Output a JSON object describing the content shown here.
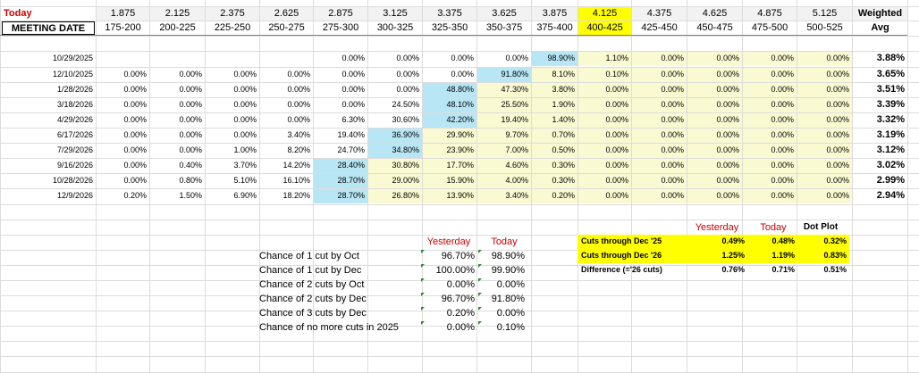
{
  "header": {
    "today_label": "Today",
    "meeting_date_label": "MEETING DATE",
    "rates": [
      "1.875",
      "2.125",
      "2.375",
      "2.625",
      "2.875",
      "3.125",
      "3.375",
      "3.625",
      "3.875",
      "4.125",
      "4.375",
      "4.625",
      "4.875",
      "5.125"
    ],
    "ranges": [
      "175-200",
      "200-225",
      "225-250",
      "250-275",
      "275-300",
      "300-325",
      "325-350",
      "350-375",
      "375-400",
      "400-425",
      "425-450",
      "450-475",
      "475-500",
      "500-525"
    ],
    "weighted_label": "Weighted",
    "avg_label": "Avg"
  },
  "rows": [
    {
      "date": "10/29/2025",
      "cells": [
        "",
        "",
        "",
        "",
        "0.00%",
        "0.00%",
        "0.00%",
        "0.00%",
        "98.90%",
        "1.10%",
        "0.00%",
        "0.00%",
        "0.00%",
        "0.00%"
      ],
      "avg": "3.88%"
    },
    {
      "date": "12/10/2025",
      "cells": [
        "0.00%",
        "0.00%",
        "0.00%",
        "0.00%",
        "0.00%",
        "0.00%",
        "0.00%",
        "91.80%",
        "8.10%",
        "0.10%",
        "0.00%",
        "0.00%",
        "0.00%",
        "0.00%"
      ],
      "avg": "3.65%"
    },
    {
      "date": "1/28/2026",
      "cells": [
        "0.00%",
        "0.00%",
        "0.00%",
        "0.00%",
        "0.00%",
        "0.00%",
        "48.80%",
        "47.30%",
        "3.80%",
        "0.00%",
        "0.00%",
        "0.00%",
        "0.00%",
        "0.00%"
      ],
      "avg": "3.51%"
    },
    {
      "date": "3/18/2026",
      "cells": [
        "0.00%",
        "0.00%",
        "0.00%",
        "0.00%",
        "0.00%",
        "24.50%",
        "48.10%",
        "25.50%",
        "1.90%",
        "0.00%",
        "0.00%",
        "0.00%",
        "0.00%",
        "0.00%"
      ],
      "avg": "3.39%"
    },
    {
      "date": "4/29/2026",
      "cells": [
        "0.00%",
        "0.00%",
        "0.00%",
        "0.00%",
        "6.30%",
        "30.60%",
        "42.20%",
        "19.40%",
        "1.40%",
        "0.00%",
        "0.00%",
        "0.00%",
        "0.00%",
        "0.00%"
      ],
      "avg": "3.32%"
    },
    {
      "date": "6/17/2026",
      "cells": [
        "0.00%",
        "0.00%",
        "0.00%",
        "3.40%",
        "19.40%",
        "36.90%",
        "29.90%",
        "9.70%",
        "0.70%",
        "0.00%",
        "0.00%",
        "0.00%",
        "0.00%",
        "0.00%"
      ],
      "avg": "3.19%"
    },
    {
      "date": "7/29/2026",
      "cells": [
        "0.00%",
        "0.00%",
        "1.00%",
        "8.20%",
        "24.70%",
        "34.80%",
        "23.90%",
        "7.00%",
        "0.50%",
        "0.00%",
        "0.00%",
        "0.00%",
        "0.00%",
        "0.00%"
      ],
      "avg": "3.12%"
    },
    {
      "date": "9/16/2026",
      "cells": [
        "0.00%",
        "0.40%",
        "3.70%",
        "14.20%",
        "28.40%",
        "30.80%",
        "17.70%",
        "4.60%",
        "0.30%",
        "0.00%",
        "0.00%",
        "0.00%",
        "0.00%",
        "0.00%"
      ],
      "avg": "3.02%"
    },
    {
      "date": "10/28/2026",
      "cells": [
        "0.00%",
        "0.80%",
        "5.10%",
        "16.10%",
        "28.70%",
        "29.00%",
        "15.90%",
        "4.00%",
        "0.30%",
        "0.00%",
        "0.00%",
        "0.00%",
        "0.00%",
        "0.00%"
      ],
      "avg": "2.99%"
    },
    {
      "date": "12/9/2026",
      "cells": [
        "0.20%",
        "1.50%",
        "6.90%",
        "18.20%",
        "28.70%",
        "26.80%",
        "13.90%",
        "3.40%",
        "0.20%",
        "0.00%",
        "0.00%",
        "0.00%",
        "0.00%",
        "0.00%"
      ],
      "avg": "2.94%"
    }
  ],
  "highlights_blue": [
    [
      0,
      8
    ],
    [
      1,
      7
    ],
    [
      2,
      6
    ],
    [
      3,
      6
    ],
    [
      4,
      6
    ],
    [
      5,
      5
    ],
    [
      6,
      5
    ],
    [
      7,
      4
    ],
    [
      8,
      4
    ],
    [
      9,
      4
    ]
  ],
  "cut_chances": {
    "yesterday_label": "Yesterday",
    "today_label": "Today",
    "items": [
      {
        "label": "Chance of 1 cut by Oct",
        "yesterday": "96.70%",
        "today": "98.90%"
      },
      {
        "label": "Chance of 1 cut by Dec",
        "yesterday": "100.00%",
        "today": "99.90%"
      },
      {
        "label": "Chance of 2 cuts by Oct",
        "yesterday": "0.00%",
        "today": "0.00%"
      },
      {
        "label": "Chance of 2 cuts by Dec",
        "yesterday": "96.70%",
        "today": "91.80%"
      },
      {
        "label": "Chance of 3 cuts by Dec",
        "yesterday": "0.20%",
        "today": "0.00%"
      },
      {
        "label": "Chance of no more cuts in 2025",
        "yesterday": "0.00%",
        "today": "0.10%"
      }
    ]
  },
  "cuts_summary": {
    "yesterday_label": "Yesterday",
    "today_label": "Today",
    "dotplot_label": "Dot Plot",
    "items": [
      {
        "label": "Cuts through Dec '25",
        "yesterday": "0.49%",
        "today": "0.48%",
        "dotplot": "0.32%"
      },
      {
        "label": "Cuts through Dec '26",
        "yesterday": "1.25%",
        "today": "1.19%",
        "dotplot": "0.83%"
      },
      {
        "label": "Difference (='26 cuts)",
        "yesterday": "0.76%",
        "today": "0.71%",
        "dotplot": "0.51%"
      }
    ]
  },
  "colors": {
    "red": "#cc0000",
    "yellow": "#ffff00",
    "blue": "#b8e6f5",
    "cream": "#fafad2"
  }
}
